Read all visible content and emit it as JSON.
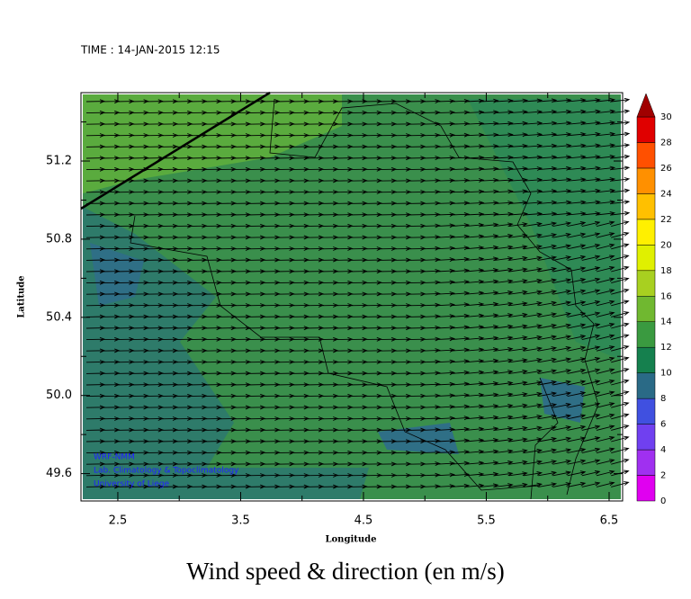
{
  "header": {
    "time": "TIME : 14-JAN-2015 12:15"
  },
  "map": {
    "xlabel": "Longitude",
    "ylabel": "Latitude",
    "xlim": [
      2.2,
      6.61
    ],
    "ylim": [
      49.46,
      51.55
    ],
    "xticks": [
      2.5,
      3.5,
      4.5,
      5.5,
      6.5
    ],
    "yticks": [
      {
        "value": 51.2,
        "label": "51.2"
      },
      {
        "value": 50.8,
        "label": "50.8"
      },
      {
        "value": 50.4,
        "label": "50.4"
      },
      {
        "value": 50,
        "label": "50.0"
      },
      {
        "value": 49.6,
        "label": "49.6"
      }
    ],
    "xminor": [
      3,
      4,
      5,
      6
    ],
    "yminor": [
      51.4,
      51,
      50.6,
      50.2,
      49.8
    ]
  },
  "credits": [
    "WRF-NMM",
    "Lab. Climatology & Topoclimatology",
    "University of Liege"
  ],
  "colorbar": {
    "levels": [
      0,
      2,
      4,
      6,
      8,
      10,
      12,
      14,
      16,
      18,
      20,
      22,
      24,
      26,
      28,
      30
    ],
    "colors": [
      "#e000f0",
      "#a030f0",
      "#7040f0",
      "#4050e0",
      "#2a6a86",
      "#15804e",
      "#3a9a40",
      "#70b830",
      "#a8d020",
      "#e0f000",
      "#fff000",
      "#ffc000",
      "#ff9000",
      "#ff5000",
      "#e00000"
    ],
    "over_color": "#a00000"
  },
  "footer": {
    "title": "Wind speed & direction (en m/s)"
  }
}
